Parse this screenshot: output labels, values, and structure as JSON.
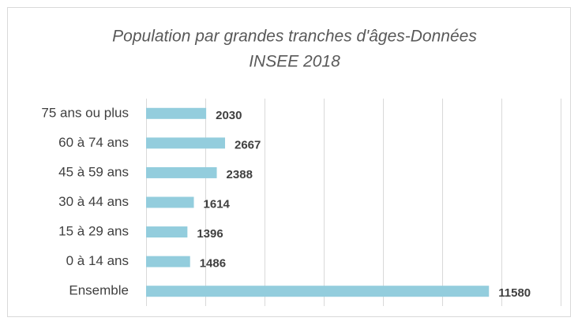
{
  "chart_data": {
    "type": "bar",
    "orientation": "horizontal",
    "title": [
      "Population par grandes tranches d'âges-Données",
      "INSEE 2018"
    ],
    "categories": [
      "75 ans ou plus",
      "60 à 74 ans",
      "45 à 59 ans",
      "30 à 44 ans",
      "15 à 29 ans",
      "0 à 14 ans",
      "Ensemble"
    ],
    "values": [
      2030,
      2667,
      2388,
      1614,
      1396,
      1486,
      11580
    ],
    "color": "#93cddd",
    "xlim": [
      0,
      14000
    ],
    "xticks": [
      0,
      2000,
      4000,
      6000,
      8000,
      10000,
      12000,
      14000
    ],
    "grid": true
  }
}
